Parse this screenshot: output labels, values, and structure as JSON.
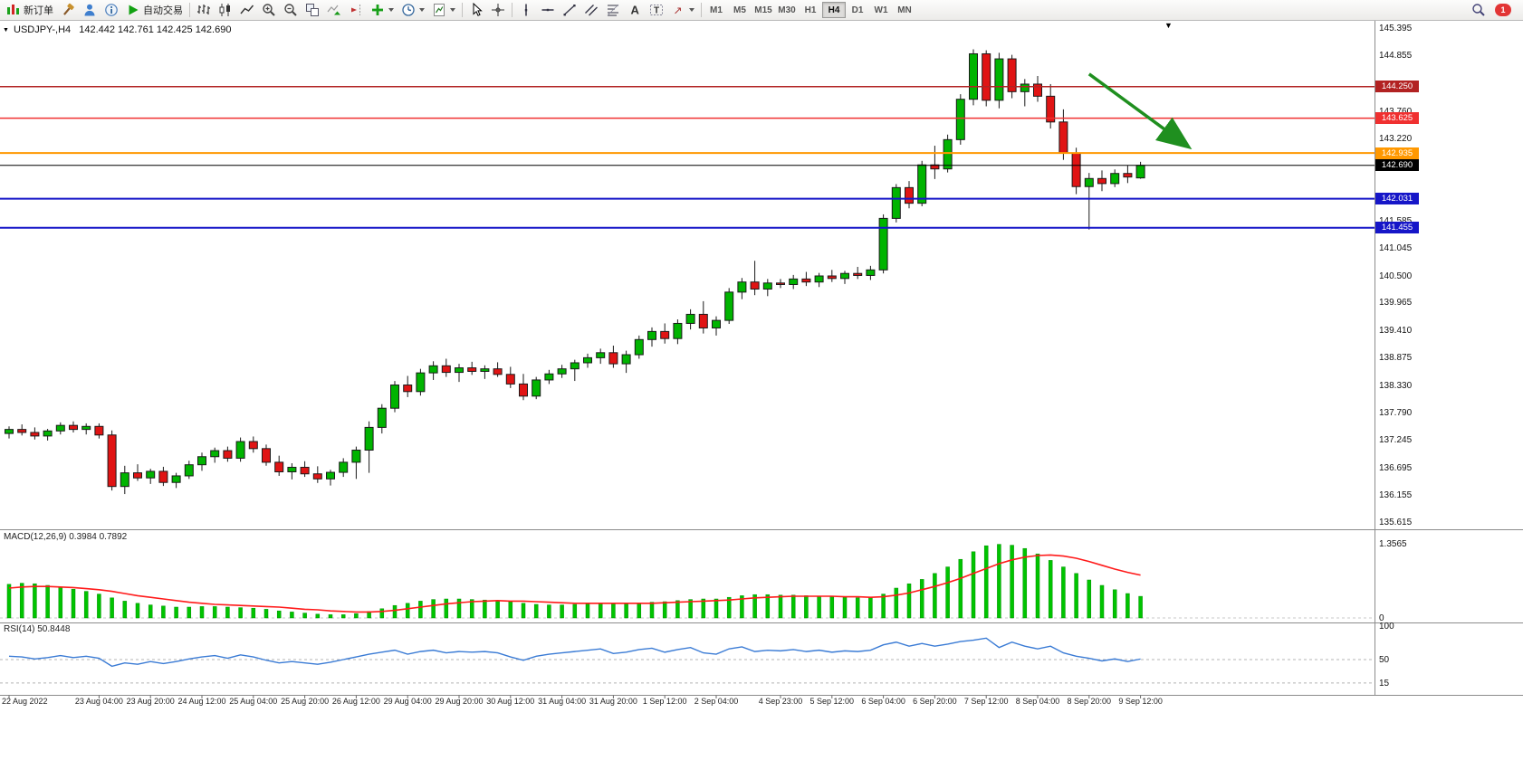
{
  "toolbar": {
    "new_order": "新订单",
    "autotrading": "自动交易",
    "timeframes": [
      "M1",
      "M5",
      "M15",
      "M30",
      "H1",
      "H4",
      "D1",
      "W1",
      "MN"
    ],
    "active_timeframe": "H4",
    "notification_count": "1"
  },
  "chart": {
    "title": "USDJPY-,H4",
    "ohlc_text": "142.442 142.761 142.425 142.690",
    "collapse_marker": "▼",
    "scale_marker": "▼"
  },
  "icons": [
    "new-order-icon",
    "metaeditor-hammer-icon",
    "community-person-icon",
    "info-icon",
    "autotrading-play-icon",
    "ohlc-bars-icon",
    "candlestick-icon",
    "line-chart-icon",
    "zoom-in-icon",
    "zoom-out-icon",
    "tile-windows-icon",
    "auto-scroll-icon",
    "chart-shift-icon",
    "indicators-plus-icon",
    "periods-clock-icon",
    "templates-icon",
    "cursor-icon",
    "crosshair-icon",
    "vertical-line-icon",
    "horizontal-line-icon",
    "trendline-icon",
    "channel-icon",
    "fibonacci-icon",
    "text-icon",
    "text-label-icon",
    "arrows-icon",
    "search-icon",
    "dropdown-caret-icon",
    "notification-badge"
  ],
  "chart_data": {
    "type": "candlestick",
    "symbol": "USDJPY-",
    "period": "H4",
    "price_axis": {
      "min": 135.5,
      "max": 145.5,
      "labels": [
        "145.395",
        "144.855",
        "143.760",
        "143.220",
        "141.585",
        "141.045",
        "140.500",
        "139.965",
        "139.410",
        "138.875",
        "138.330",
        "137.790",
        "137.245",
        "136.695",
        "136.155",
        "135.615"
      ]
    },
    "levels": [
      {
        "price": 144.25,
        "label": "144.250",
        "color": "#b22222",
        "width": 1.4
      },
      {
        "price": 143.625,
        "label": "143.625",
        "color": "#f03030",
        "width": 1.4
      },
      {
        "price": 142.935,
        "label": "142.935",
        "color": "#ff9800",
        "width": 2
      },
      {
        "price": 142.031,
        "label": "142.031",
        "color": "#1616c8",
        "width": 2
      },
      {
        "price": 141.455,
        "label": "141.455",
        "color": "#1616c8",
        "width": 2
      }
    ],
    "current_price": {
      "value": 142.69,
      "label": "142.690",
      "color": "#000000"
    },
    "colors": {
      "up": "#00b400",
      "down": "#e01414",
      "wick": "#1a1a1a"
    },
    "candles": [
      [
        137.38,
        137.52,
        137.28,
        137.46
      ],
      [
        137.46,
        137.56,
        137.34,
        137.4
      ],
      [
        137.4,
        137.5,
        137.26,
        137.33
      ],
      [
        137.33,
        137.47,
        137.24,
        137.43
      ],
      [
        137.43,
        137.6,
        137.36,
        137.54
      ],
      [
        137.54,
        137.62,
        137.4,
        137.46
      ],
      [
        137.46,
        137.58,
        137.36,
        137.52
      ],
      [
        137.52,
        137.58,
        137.28,
        137.35
      ],
      [
        137.35,
        137.44,
        136.25,
        136.33
      ],
      [
        136.33,
        136.74,
        136.18,
        136.6
      ],
      [
        136.6,
        136.77,
        136.44,
        136.5
      ],
      [
        136.5,
        136.68,
        136.38,
        136.63
      ],
      [
        136.63,
        136.72,
        136.34,
        136.41
      ],
      [
        136.41,
        136.6,
        136.3,
        136.54
      ],
      [
        136.54,
        136.84,
        136.48,
        136.76
      ],
      [
        136.76,
        137.0,
        136.64,
        136.92
      ],
      [
        136.92,
        137.1,
        136.8,
        137.04
      ],
      [
        137.04,
        137.12,
        136.82,
        136.89
      ],
      [
        136.89,
        137.3,
        136.82,
        137.22
      ],
      [
        137.22,
        137.32,
        137.0,
        137.08
      ],
      [
        137.08,
        137.16,
        136.74,
        136.81
      ],
      [
        136.81,
        136.94,
        136.54,
        136.62
      ],
      [
        136.62,
        136.79,
        136.47,
        136.71
      ],
      [
        136.71,
        136.83,
        136.52,
        136.58
      ],
      [
        136.58,
        136.73,
        136.4,
        136.48
      ],
      [
        136.48,
        136.66,
        136.35,
        136.61
      ],
      [
        136.61,
        136.89,
        136.52,
        136.81
      ],
      [
        136.81,
        137.12,
        136.48,
        137.05
      ],
      [
        137.05,
        137.62,
        136.6,
        137.5
      ],
      [
        137.5,
        137.96,
        137.38,
        137.88
      ],
      [
        137.88,
        138.42,
        137.8,
        138.34
      ],
      [
        138.34,
        138.52,
        138.1,
        138.21
      ],
      [
        138.21,
        138.66,
        138.13,
        138.58
      ],
      [
        138.58,
        138.81,
        138.44,
        138.72
      ],
      [
        138.72,
        138.86,
        138.5,
        138.59
      ],
      [
        138.59,
        138.76,
        138.4,
        138.68
      ],
      [
        138.68,
        138.8,
        138.54,
        138.61
      ],
      [
        138.61,
        138.73,
        138.46,
        138.66
      ],
      [
        138.66,
        138.79,
        138.5,
        138.55
      ],
      [
        138.55,
        138.7,
        138.28,
        138.36
      ],
      [
        138.36,
        138.56,
        138.04,
        138.12
      ],
      [
        138.12,
        138.5,
        138.06,
        138.44
      ],
      [
        138.44,
        138.64,
        138.36,
        138.56
      ],
      [
        138.56,
        138.74,
        138.48,
        138.66
      ],
      [
        138.66,
        138.84,
        138.42,
        138.78
      ],
      [
        138.78,
        138.96,
        138.68,
        138.88
      ],
      [
        138.88,
        139.06,
        138.76,
        138.98
      ],
      [
        138.98,
        139.12,
        138.68,
        138.76
      ],
      [
        138.76,
        139.02,
        138.58,
        138.94
      ],
      [
        138.94,
        139.32,
        138.86,
        139.24
      ],
      [
        139.24,
        139.48,
        139.1,
        139.4
      ],
      [
        139.4,
        139.56,
        139.16,
        139.26
      ],
      [
        139.26,
        139.64,
        139.15,
        139.56
      ],
      [
        139.56,
        139.84,
        139.44,
        139.74
      ],
      [
        139.74,
        140.0,
        139.36,
        139.47
      ],
      [
        139.47,
        139.7,
        139.32,
        139.62
      ],
      [
        139.62,
        140.26,
        139.55,
        140.18
      ],
      [
        140.18,
        140.46,
        140.04,
        140.38
      ],
      [
        140.38,
        140.8,
        140.12,
        140.24
      ],
      [
        140.24,
        140.44,
        140.1,
        140.36
      ],
      [
        140.36,
        140.44,
        140.26,
        140.33
      ],
      [
        140.33,
        140.52,
        140.24,
        140.44
      ],
      [
        140.44,
        140.58,
        140.3,
        140.38
      ],
      [
        140.38,
        140.56,
        140.28,
        140.5
      ],
      [
        140.5,
        140.62,
        140.38,
        140.45
      ],
      [
        140.45,
        140.6,
        140.34,
        140.55
      ],
      [
        140.55,
        140.68,
        140.44,
        140.51
      ],
      [
        140.51,
        140.7,
        140.42,
        140.62
      ],
      [
        140.62,
        141.72,
        140.55,
        141.64
      ],
      [
        141.64,
        142.32,
        141.56,
        142.25
      ],
      [
        142.25,
        142.38,
        141.84,
        141.94
      ],
      [
        141.94,
        142.78,
        141.88,
        142.7
      ],
      [
        142.7,
        143.08,
        142.42,
        142.62
      ],
      [
        142.62,
        143.3,
        142.55,
        143.2
      ],
      [
        143.2,
        144.1,
        143.1,
        144.0
      ],
      [
        144.0,
        144.99,
        143.88,
        144.9
      ],
      [
        144.9,
        144.97,
        143.86,
        143.98
      ],
      [
        143.98,
        144.92,
        143.82,
        144.8
      ],
      [
        144.8,
        144.88,
        144.02,
        144.15
      ],
      [
        144.15,
        144.4,
        143.86,
        144.3
      ],
      [
        144.3,
        144.46,
        143.95,
        144.06
      ],
      [
        144.06,
        144.3,
        143.42,
        143.55
      ],
      [
        143.55,
        143.8,
        142.8,
        142.93
      ],
      [
        142.93,
        143.04,
        142.12,
        142.27
      ],
      [
        142.27,
        142.54,
        141.42,
        142.43
      ],
      [
        142.43,
        142.59,
        142.18,
        142.33
      ],
      [
        142.33,
        142.61,
        142.26,
        142.53
      ],
      [
        142.53,
        142.69,
        142.34,
        142.46
      ],
      [
        142.442,
        142.761,
        142.425,
        142.69
      ]
    ],
    "time_labels": [
      {
        "i": 0,
        "t": "22 Aug 2022"
      },
      {
        "i": 7,
        "t": "23 Aug 04:00"
      },
      {
        "i": 11,
        "t": "23 Aug 20:00"
      },
      {
        "i": 15,
        "t": "24 Aug 12:00"
      },
      {
        "i": 19,
        "t": "25 Aug 04:00"
      },
      {
        "i": 23,
        "t": "25 Aug 20:00"
      },
      {
        "i": 27,
        "t": "26 Aug 12:00"
      },
      {
        "i": 31,
        "t": "29 Aug 04:00"
      },
      {
        "i": 35,
        "t": "29 Aug 20:00"
      },
      {
        "i": 39,
        "t": "30 Aug 12:00"
      },
      {
        "i": 43,
        "t": "31 Aug 04:00"
      },
      {
        "i": 47,
        "t": "31 Aug 20:00"
      },
      {
        "i": 51,
        "t": "1 Sep 12:00"
      },
      {
        "i": 55,
        "t": "2 Sep 04:00"
      },
      {
        "i": 60,
        "t": "4 Sep 23:00"
      },
      {
        "i": 64,
        "t": "5 Sep 12:00"
      },
      {
        "i": 68,
        "t": "6 Sep 04:00"
      },
      {
        "i": 72,
        "t": "6 Sep 20:00"
      },
      {
        "i": 76,
        "t": "7 Sep 12:00"
      },
      {
        "i": 80,
        "t": "8 Sep 04:00"
      },
      {
        "i": 84,
        "t": "8 Sep 20:00"
      },
      {
        "i": 88,
        "t": "9 Sep 12:00"
      }
    ],
    "macd": {
      "label": "MACD(12,26,9) 0.3984 0.7892",
      "value": 0.3984,
      "signal_value": 0.7892,
      "hist_color": "#00c400",
      "signal_color": "#ff1a1a",
      "axis": [
        {
          "value": 1.3565,
          "text": "1.3565"
        },
        {
          "value": 0,
          "text": "0"
        }
      ],
      "histogram": [
        0.62,
        0.64,
        0.63,
        0.6,
        0.57,
        0.53,
        0.49,
        0.44,
        0.37,
        0.31,
        0.27,
        0.24,
        0.22,
        0.2,
        0.2,
        0.21,
        0.21,
        0.2,
        0.19,
        0.18,
        0.16,
        0.13,
        0.11,
        0.09,
        0.07,
        0.06,
        0.06,
        0.08,
        0.12,
        0.17,
        0.23,
        0.27,
        0.31,
        0.34,
        0.35,
        0.35,
        0.34,
        0.33,
        0.32,
        0.3,
        0.27,
        0.25,
        0.24,
        0.24,
        0.25,
        0.26,
        0.27,
        0.26,
        0.26,
        0.27,
        0.29,
        0.3,
        0.32,
        0.34,
        0.35,
        0.35,
        0.38,
        0.41,
        0.43,
        0.43,
        0.42,
        0.42,
        0.41,
        0.4,
        0.39,
        0.38,
        0.37,
        0.37,
        0.44,
        0.55,
        0.63,
        0.71,
        0.82,
        0.94,
        1.08,
        1.22,
        1.33,
        1.3565,
        1.34,
        1.28,
        1.18,
        1.06,
        0.94,
        0.82,
        0.7,
        0.6,
        0.52,
        0.45,
        0.3984
      ],
      "signal": [
        0.55,
        0.57,
        0.58,
        0.58,
        0.57,
        0.56,
        0.54,
        0.52,
        0.49,
        0.45,
        0.41,
        0.38,
        0.35,
        0.32,
        0.29,
        0.27,
        0.25,
        0.24,
        0.23,
        0.22,
        0.21,
        0.2,
        0.18,
        0.16,
        0.15,
        0.13,
        0.12,
        0.11,
        0.11,
        0.12,
        0.14,
        0.17,
        0.2,
        0.23,
        0.26,
        0.28,
        0.3,
        0.31,
        0.32,
        0.31,
        0.31,
        0.3,
        0.29,
        0.28,
        0.27,
        0.27,
        0.27,
        0.27,
        0.27,
        0.27,
        0.27,
        0.28,
        0.29,
        0.3,
        0.31,
        0.32,
        0.33,
        0.35,
        0.37,
        0.38,
        0.39,
        0.4,
        0.4,
        0.4,
        0.4,
        0.39,
        0.39,
        0.38,
        0.39,
        0.42,
        0.46,
        0.52,
        0.58,
        0.65,
        0.73,
        0.82,
        0.91,
        1.0,
        1.07,
        1.12,
        1.15,
        1.16,
        1.14,
        1.1,
        1.04,
        0.97,
        0.9,
        0.84,
        0.7892
      ]
    },
    "rsi": {
      "label": "RSI(14) 50.8448",
      "value": 50.8448,
      "line_color": "#3a7bd5",
      "levels": [
        50,
        15
      ],
      "axis": [
        {
          "value": 100,
          "text": "100"
        },
        {
          "value": 50,
          "text": "50"
        },
        {
          "value": 15,
          "text": "15"
        }
      ],
      "values": [
        55,
        54,
        51,
        53,
        56,
        53,
        55,
        52,
        40,
        45,
        43,
        47,
        44,
        47,
        51,
        54,
        56,
        52,
        57,
        54,
        49,
        45,
        47,
        45,
        43,
        46,
        50,
        54,
        58,
        61,
        64,
        58,
        62,
        64,
        60,
        62,
        61,
        62,
        60,
        54,
        49,
        55,
        58,
        60,
        62,
        64,
        66,
        59,
        61,
        65,
        67,
        61,
        65,
        68,
        60,
        58,
        66,
        69,
        62,
        64,
        63,
        65,
        62,
        64,
        61,
        63,
        62,
        64,
        72,
        76,
        70,
        74,
        70,
        73,
        77,
        79,
        82,
        68,
        76,
        70,
        66,
        70,
        60,
        55,
        52,
        48,
        51,
        47,
        50.8448
      ]
    },
    "annotation_arrow": {
      "from_bar": 84,
      "from_price": 144.5,
      "to_bar": 91.5,
      "to_price": 143.1,
      "color": "#1f8f1f"
    }
  }
}
